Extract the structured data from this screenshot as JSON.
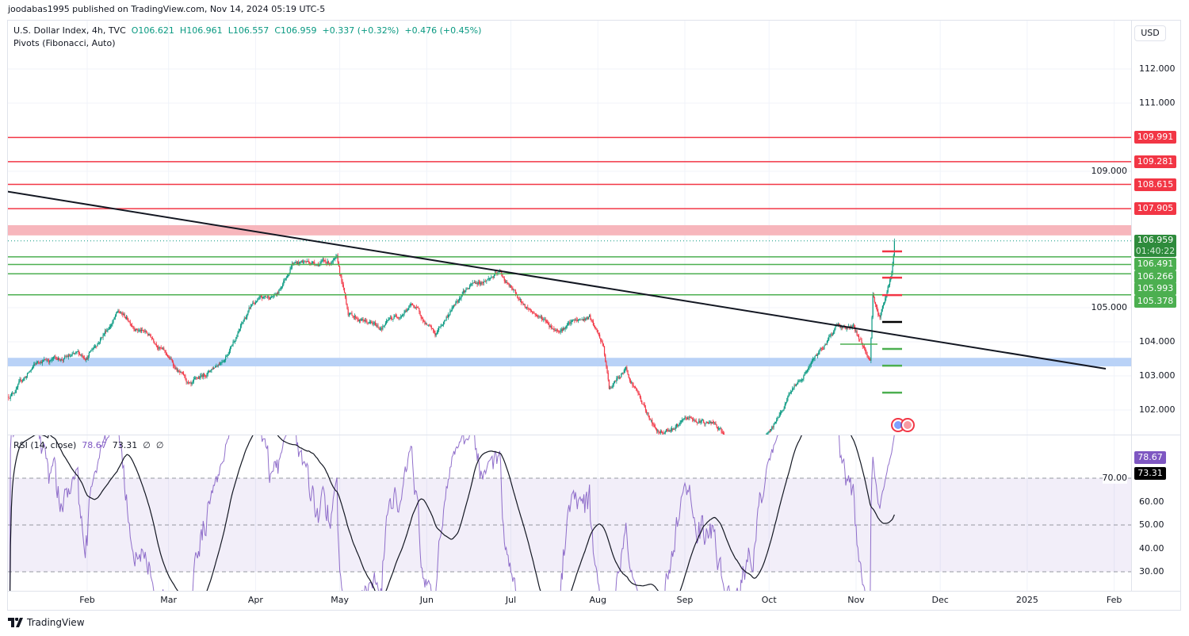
{
  "header": {
    "published": "joodabas1995 published on TradingView.com, Nov 14, 2024 05:19 UTC-5",
    "symbol": "U.S. Dollar Index, 4h, TVC",
    "open": "O106.621",
    "high": "H106.961",
    "low": "L106.557",
    "close": "C106.959",
    "change": "+0.337 (+0.32%)",
    "change2": "+0.476 (+0.45%)",
    "indicator": "Pivots (Fibonacci, Auto)",
    "currency": "USD"
  },
  "rsi_legend": {
    "name": "RSI (14, close)",
    "value": "78.67",
    "ma": "73.31",
    "x1": "∅",
    "x2": "∅"
  },
  "footer": {
    "brand": "TradingView"
  },
  "colors": {
    "up": "#089981",
    "down": "#f23645",
    "red_level": "#f23645",
    "green_level": "#4caf50",
    "rsi": "#7e57c2"
  },
  "chart_data": {
    "type": "candlestick",
    "title": "U.S. Dollar Index, 4h, TVC",
    "price_ticks": [
      "112.000",
      "111.000",
      "109.000",
      "105.000",
      "104.000",
      "103.000",
      "102.000"
    ],
    "price_tick_values": [
      112,
      111,
      109,
      105,
      104,
      103,
      102
    ],
    "x_ticks": [
      {
        "label": "Feb",
        "day": 31
      },
      {
        "label": "Mar",
        "day": 60
      },
      {
        "label": "Apr",
        "day": 91
      },
      {
        "label": "May",
        "day": 121
      },
      {
        "label": "Jun",
        "day": 152
      },
      {
        "label": "Jul",
        "day": 182
      },
      {
        "label": "Aug",
        "day": 213
      },
      {
        "label": "Sep",
        "day": 244
      },
      {
        "label": "Oct",
        "day": 274
      },
      {
        "label": "Nov",
        "day": 305
      },
      {
        "label": "Dec",
        "day": 335
      },
      {
        "label": "2025",
        "day": 366
      },
      {
        "label": "Feb",
        "day": 397
      }
    ],
    "price_path_day_close": [
      [
        3,
        102.4
      ],
      [
        14,
        103.45
      ],
      [
        31,
        103.6
      ],
      [
        42,
        104.85
      ],
      [
        56,
        104.0
      ],
      [
        68,
        102.6
      ],
      [
        80,
        103.6
      ],
      [
        90,
        105.1
      ],
      [
        99,
        105.4
      ],
      [
        104,
        106.35
      ],
      [
        120,
        106.35
      ],
      [
        124,
        104.85
      ],
      [
        135,
        104.4
      ],
      [
        147,
        105.1
      ],
      [
        155,
        104.15
      ],
      [
        165,
        105.55
      ],
      [
        178,
        106.0
      ],
      [
        186,
        105.1
      ],
      [
        198,
        104.4
      ],
      [
        210,
        104.7
      ],
      [
        215,
        103.8
      ],
      [
        217,
        102.6
      ],
      [
        223,
        103.2
      ],
      [
        234,
        101.35
      ],
      [
        246,
        101.7
      ],
      [
        254,
        101.6
      ],
      [
        260,
        101.0
      ],
      [
        268,
        100.8
      ],
      [
        275,
        101.35
      ],
      [
        282,
        102.6
      ],
      [
        291,
        103.55
      ],
      [
        298,
        104.5
      ],
      [
        304,
        104.4
      ],
      [
        310,
        103.45
      ],
      [
        311,
        105.4
      ],
      [
        313.5,
        104.7
      ],
      [
        315.7,
        105.4
      ],
      [
        317.7,
        106.0
      ],
      [
        319,
        106.959
      ]
    ],
    "last_price": {
      "label": "106.959",
      "countdown": "01:40:22",
      "value": 106.959
    },
    "resistance_levels": [
      {
        "label": "109.991",
        "value": 109.991
      },
      {
        "label": "109.281",
        "value": 109.281
      },
      {
        "label": "108.615",
        "value": 108.615
      },
      {
        "label": "107.905",
        "value": 107.905
      }
    ],
    "support_levels": [
      {
        "label": "106.491",
        "value": 106.491
      },
      {
        "label": "106.266",
        "value": 106.266
      },
      {
        "label": "105.993",
        "value": 105.993
      },
      {
        "label": "105.378",
        "value": 105.378
      }
    ],
    "zones": [
      {
        "name": "resistance-zone",
        "from": 107.12,
        "to": 107.42,
        "color": "#f7b6bc"
      },
      {
        "name": "support-zone",
        "from": 103.28,
        "to": 103.53,
        "color": "#b9d2f7"
      }
    ],
    "trendline": {
      "from": [
        0,
        108.44
      ],
      "to": [
        394,
        103.21
      ]
    },
    "pivots": {
      "r": [
        106.65,
        105.88,
        105.37
      ],
      "p": 104.58,
      "s": [
        103.79,
        103.3,
        102.51
      ]
    },
    "rsi": {
      "period": 14,
      "value": 78.67,
      "ma": 73.31,
      "ticks": [
        "70.00",
        "60.00",
        "50.00",
        "40.00",
        "30.00"
      ],
      "tick_values": [
        70,
        60,
        50,
        40,
        30
      ],
      "overbought": 70,
      "oversold": 30,
      "mid": 50
    }
  }
}
